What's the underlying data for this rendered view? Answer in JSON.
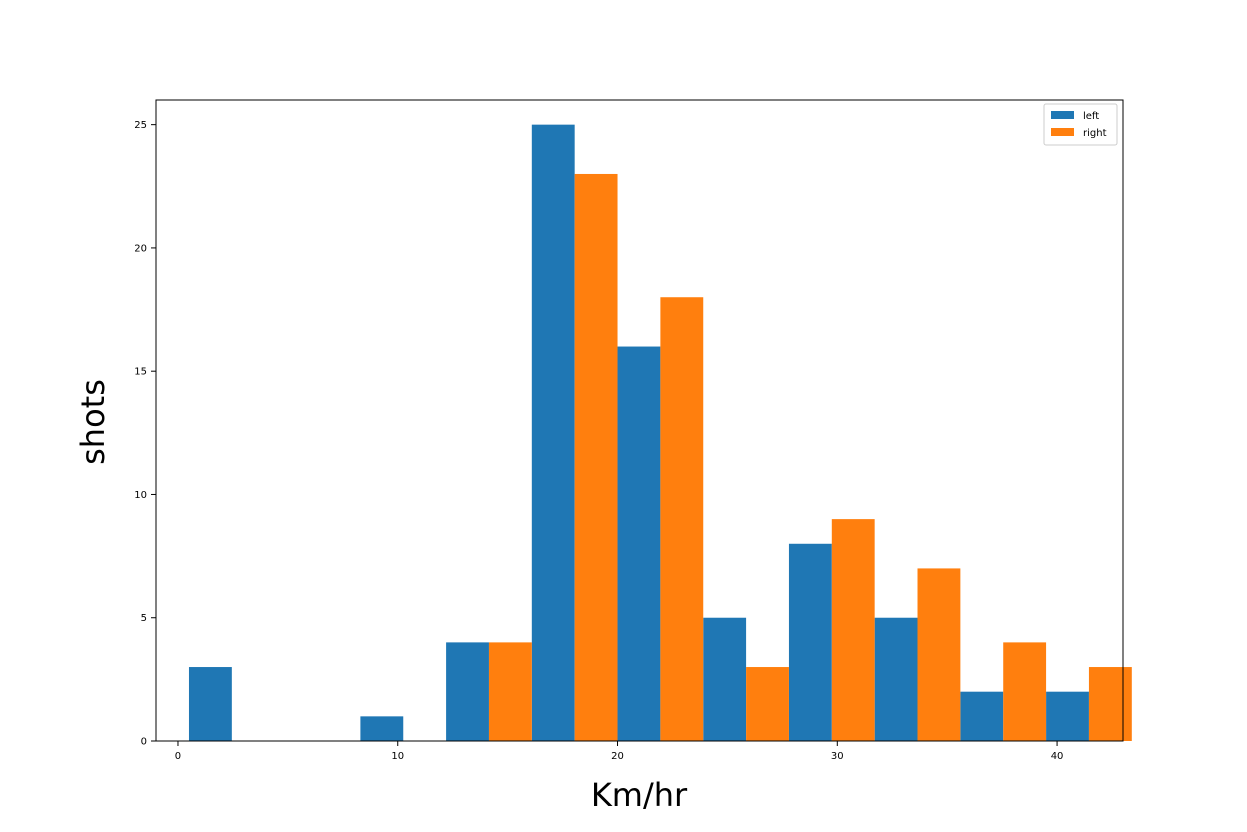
{
  "chart_data": {
    "type": "bar",
    "xlabel": "Km/hr",
    "ylabel": "shots",
    "xlim": [
      -1,
      43
    ],
    "ylim": [
      0,
      26
    ],
    "x_ticks": [
      0,
      10,
      20,
      30,
      40
    ],
    "y_ticks": [
      0,
      5,
      10,
      15,
      20,
      25
    ],
    "bin_edges": [
      0.5,
      4.4,
      8.3,
      12.2,
      16.1,
      20.0,
      23.9,
      27.8,
      31.7,
      35.6,
      39.5,
      43.4
    ],
    "legend_position": "upper-right",
    "grid": false,
    "series": [
      {
        "name": "left",
        "color": "#1f77b4",
        "values": [
          3,
          0,
          1,
          4,
          25,
          16,
          5,
          8,
          5,
          2,
          2
        ]
      },
      {
        "name": "right",
        "color": "#ff7f0e",
        "values": [
          0,
          0,
          0,
          4,
          23,
          18,
          3,
          9,
          7,
          4,
          3
        ]
      }
    ]
  }
}
